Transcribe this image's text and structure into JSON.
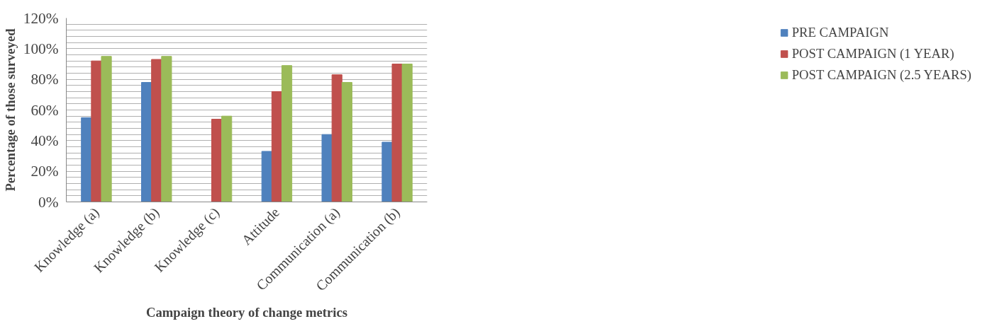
{
  "chart_data": {
    "type": "bar",
    "xlabel": "Campaign theory of change metrics",
    "ylabel": "Percentage of those surveyed",
    "categories": [
      "Knowledge (a)",
      "Knowledge (b)",
      "Knowledge (c)",
      "Attitude",
      "Communication (a)",
      "Communication (b)"
    ],
    "series": [
      {
        "name": "PRE CAMPAIGN",
        "color": "#4f81bd",
        "values": [
          55,
          78,
          null,
          33,
          44,
          39
        ]
      },
      {
        "name": "POST CAMPAIGN (1 YEAR)",
        "color": "#c0504d",
        "values": [
          92,
          93,
          54,
          72,
          83,
          90
        ]
      },
      {
        "name": "POST CAMPAIGN (2.5 YEARS)",
        "color": "#9bbb59",
        "values": [
          95,
          95,
          56,
          89,
          78,
          90
        ]
      }
    ],
    "ylim": [
      0,
      120
    ],
    "yticks": [
      {
        "value": 0,
        "label": "0%"
      },
      {
        "value": 4,
        "label": null
      },
      {
        "value": 8,
        "label": null
      },
      {
        "value": 12,
        "label": null
      },
      {
        "value": 16,
        "label": null
      },
      {
        "value": 20,
        "label": "20%"
      },
      {
        "value": 24,
        "label": null
      },
      {
        "value": 28,
        "label": null
      },
      {
        "value": 32,
        "label": null
      },
      {
        "value": 36,
        "label": null
      },
      {
        "value": 40,
        "label": "40%"
      },
      {
        "value": 44,
        "label": null
      },
      {
        "value": 48,
        "label": null
      },
      {
        "value": 52,
        "label": null
      },
      {
        "value": 56,
        "label": null
      },
      {
        "value": 60,
        "label": "60%"
      },
      {
        "value": 64,
        "label": null
      },
      {
        "value": 68,
        "label": null
      },
      {
        "value": 72,
        "label": null
      },
      {
        "value": 76,
        "label": null
      },
      {
        "value": 80,
        "label": "80%"
      },
      {
        "value": 84,
        "label": null
      },
      {
        "value": 88,
        "label": null
      },
      {
        "value": 92,
        "label": null
      },
      {
        "value": 96,
        "label": null
      },
      {
        "value": 100,
        "label": "100%"
      },
      {
        "value": 104,
        "label": null
      },
      {
        "value": 108,
        "label": null
      },
      {
        "value": 112,
        "label": null
      },
      {
        "value": 116,
        "label": null
      },
      {
        "value": 120,
        "label": "120%"
      }
    ],
    "grid": "y",
    "legend": "right"
  }
}
